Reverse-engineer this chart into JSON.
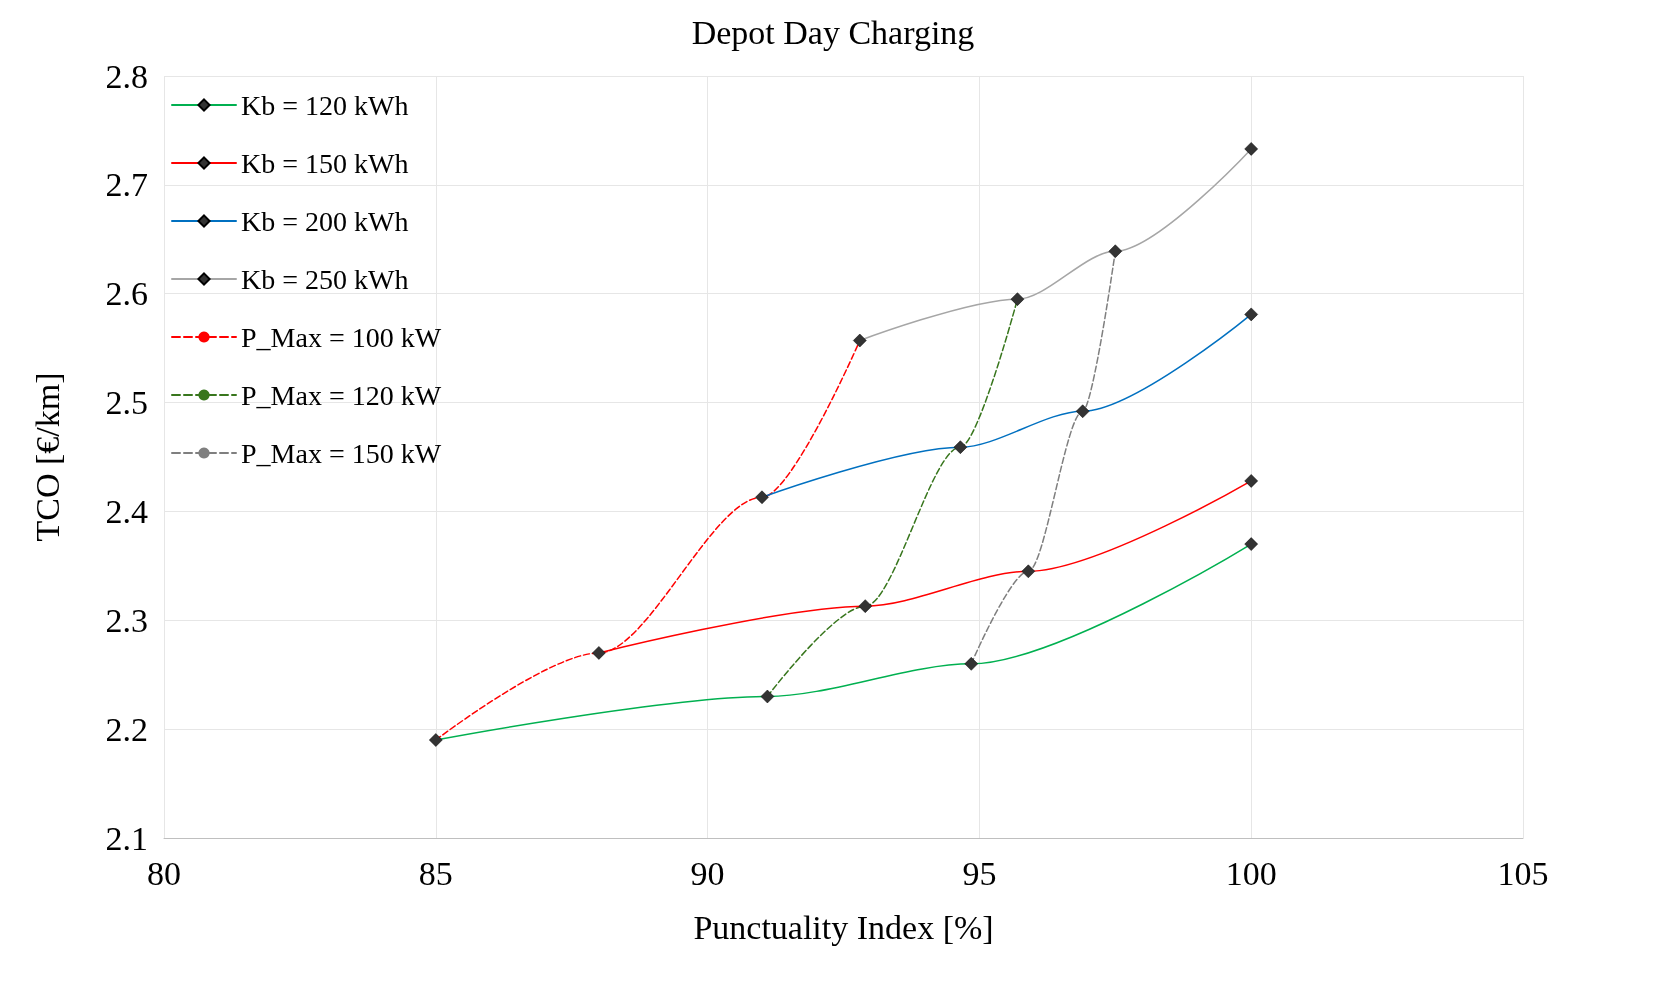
{
  "chart_data": {
    "type": "line",
    "title": "Depot Day Charging",
    "xlabel": "Punctuality Index [%]",
    "ylabel": "TCO [€/km]",
    "xlim": [
      80,
      105
    ],
    "xticks": [
      80,
      85,
      90,
      95,
      100,
      105
    ],
    "ylim": [
      2.1,
      2.8
    ],
    "yticks": [
      2.1,
      2.2,
      2.3,
      2.4,
      2.5,
      2.6,
      2.7,
      2.8
    ],
    "grid": true,
    "legend": "top left",
    "series": [
      {
        "name": "Kb = 120 kWh",
        "color": "#00b050",
        "marker": "diamond",
        "line_style": "solid",
        "x": [
          85,
          91.1,
          94.85,
          100
        ],
        "values": [
          2.19,
          2.23,
          2.26,
          2.37
        ]
      },
      {
        "name": "Kb = 150 kWh",
        "color": "#ff0000",
        "marker": "diamond",
        "line_style": "solid",
        "x": [
          88,
          92.9,
          95.9,
          100
        ],
        "values": [
          2.27,
          2.313,
          2.345,
          2.428
        ]
      },
      {
        "name": "Kb = 200 kWh",
        "color": "#0070c0",
        "marker": "diamond",
        "line_style": "solid",
        "x": [
          91,
          94.65,
          96.9,
          100
        ],
        "values": [
          2.413,
          2.459,
          2.492,
          2.581
        ]
      },
      {
        "name": "Kb = 250 kWh",
        "color": "#a6a6a6",
        "marker": "diamond",
        "line_style": "solid",
        "x": [
          92.8,
          95.7,
          97.5,
          100
        ],
        "values": [
          2.557,
          2.595,
          2.639,
          2.733
        ]
      },
      {
        "name": "P_Max = 100 kW",
        "color": "#ff0000",
        "marker": "none",
        "line_style": "dashed",
        "x": [
          85,
          88,
          91,
          92.8
        ],
        "values": [
          2.19,
          2.27,
          2.413,
          2.557
        ]
      },
      {
        "name": "P_Max = 120 kW",
        "color": "#38761d",
        "marker": "none",
        "line_style": "dashed",
        "x": [
          91.1,
          92.9,
          94.65,
          95.7
        ],
        "values": [
          2.23,
          2.313,
          2.459,
          2.595
        ]
      },
      {
        "name": "P_Max = 150 kW",
        "color": "#7f7f7f",
        "marker": "none",
        "line_style": "dashed",
        "x": [
          94.85,
          95.9,
          96.9,
          97.5
        ],
        "values": [
          2.26,
          2.345,
          2.492,
          2.639
        ]
      }
    ]
  }
}
